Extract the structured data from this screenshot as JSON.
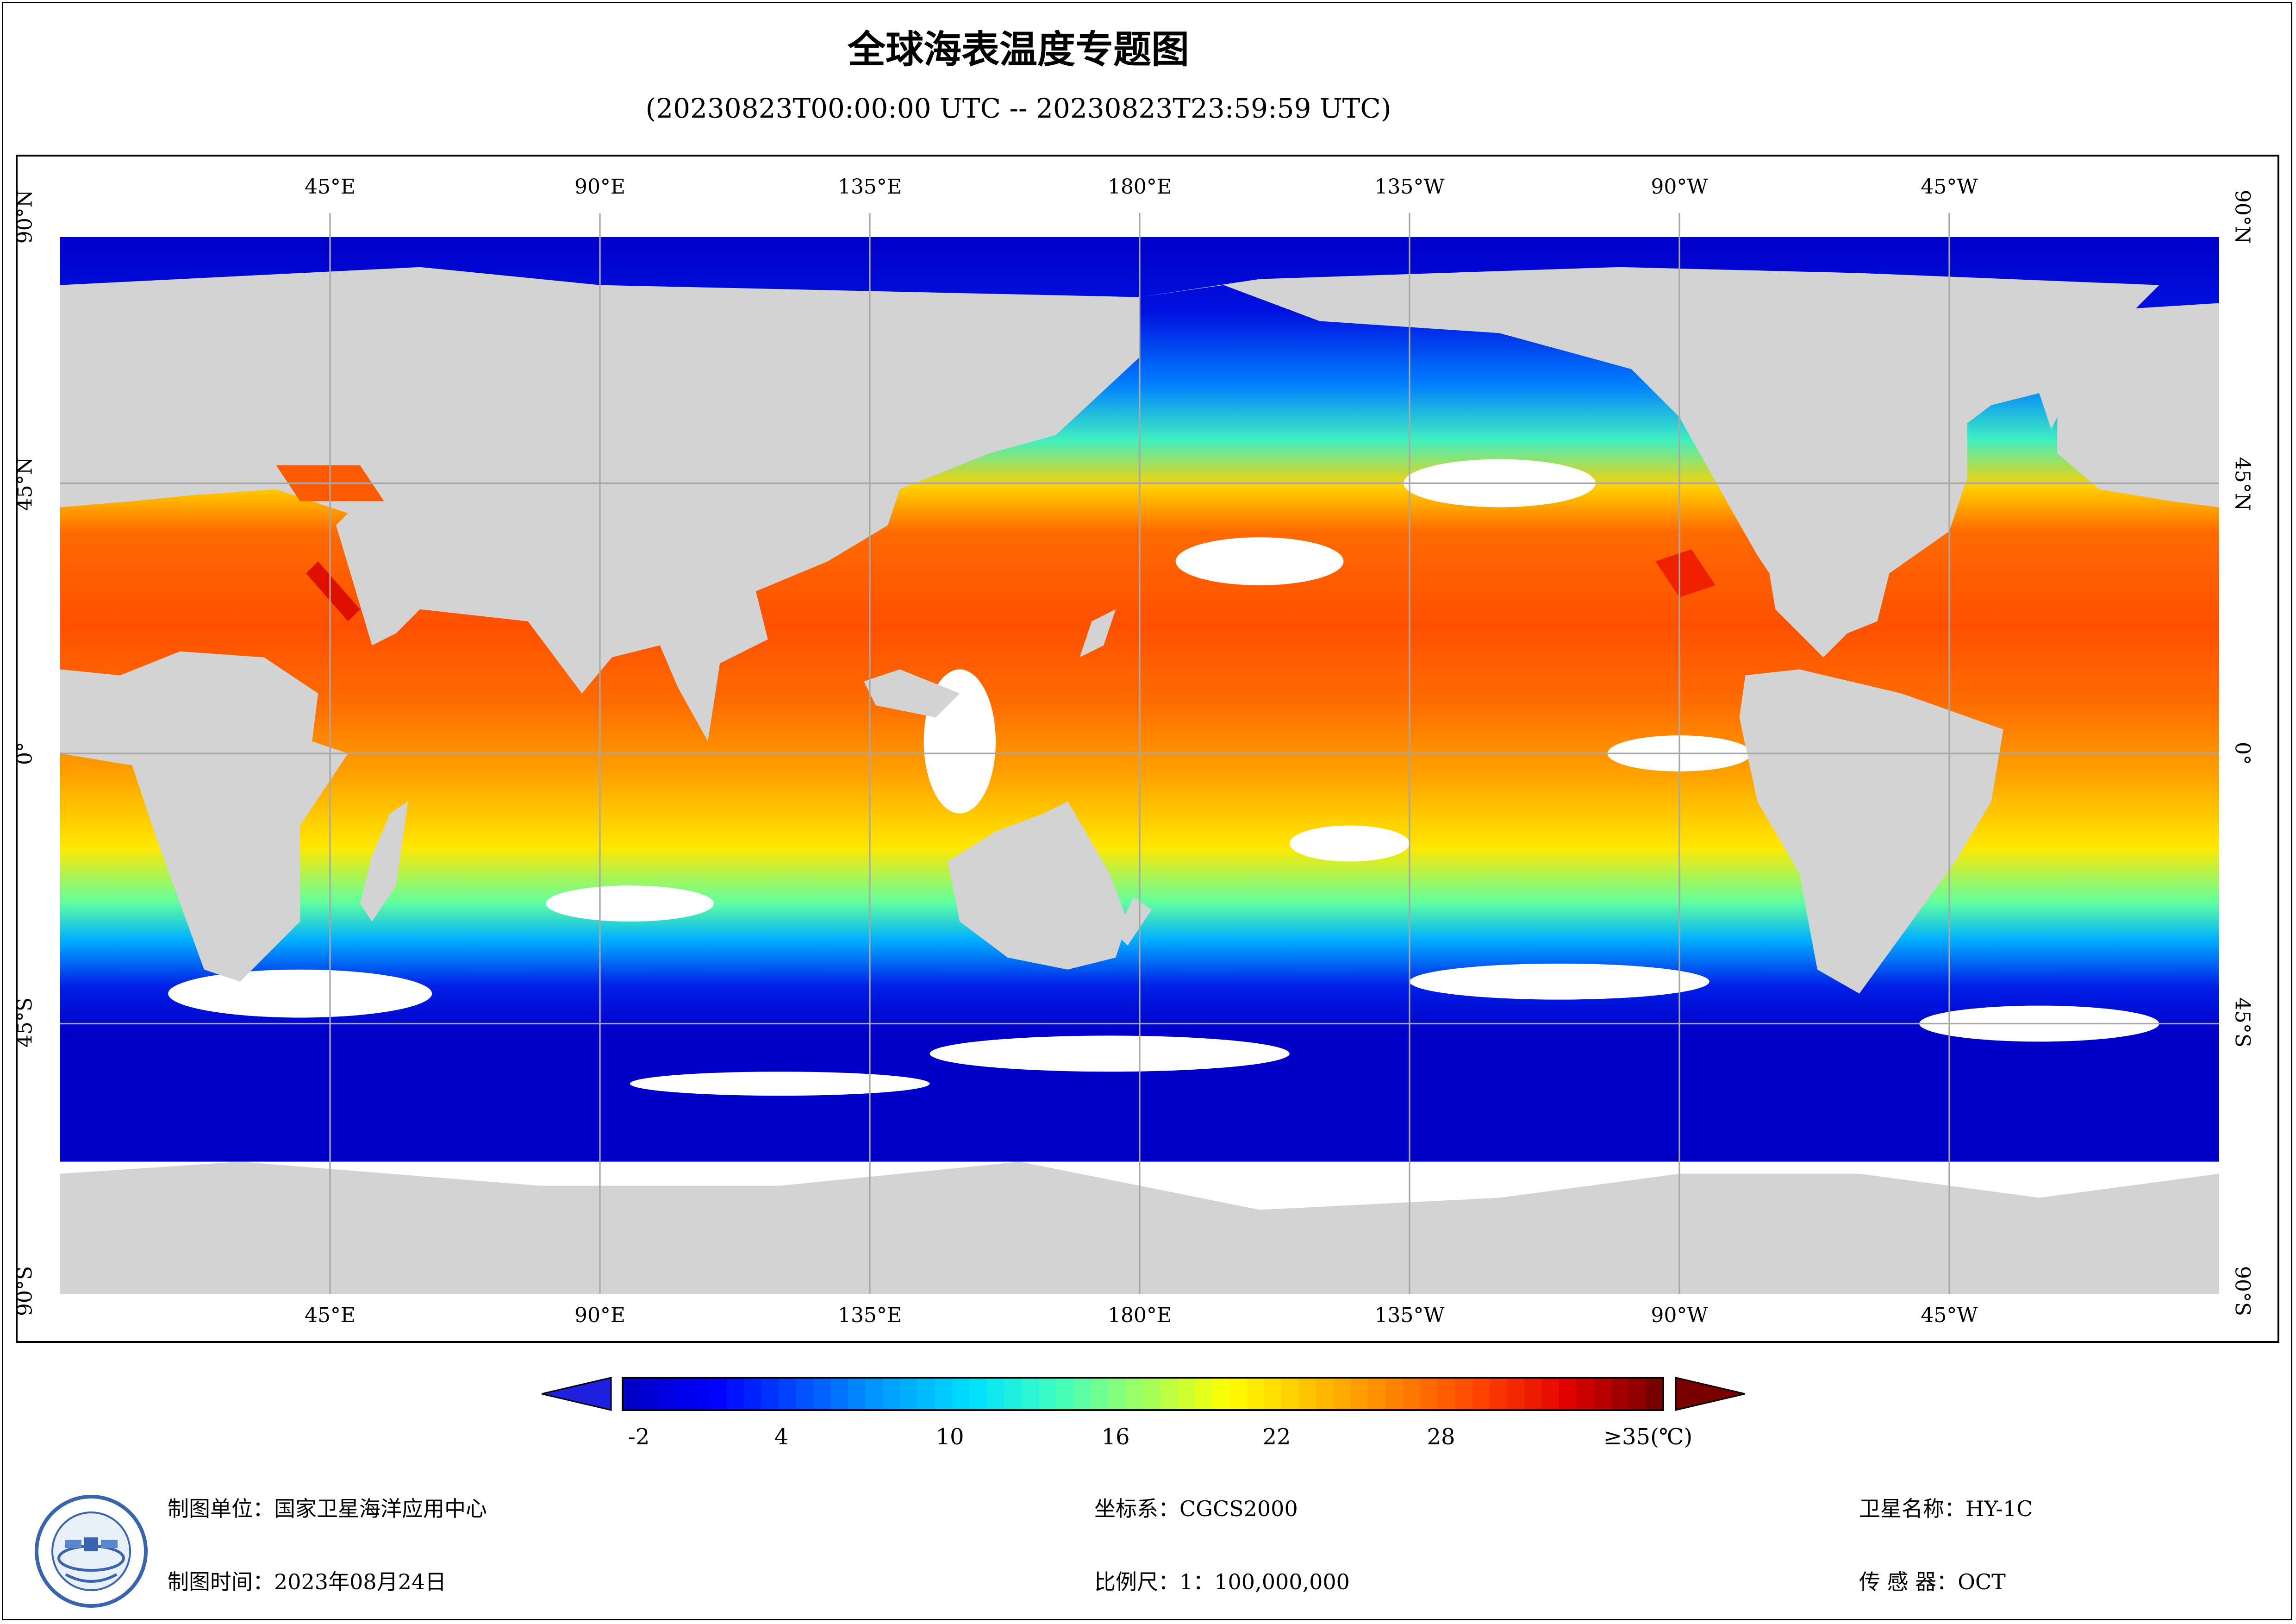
{
  "title": "全球海表温度专题图",
  "subtitle": "(20230823T00:00:00 UTC -- 20230823T23:59:59 UTC)",
  "map": {
    "projection": "equirectangular",
    "lon_labels_top": [
      "45°E",
      "90°E",
      "135°E",
      "180°E",
      "135°W",
      "90°W",
      "45°W"
    ],
    "lon_labels_bottom": [
      "45°E",
      "90°E",
      "135°E",
      "180°E",
      "135°W",
      "90°W",
      "45°W"
    ],
    "lat_labels_left": [
      "90°N",
      "45°N",
      "0°",
      "45°S",
      "90°S"
    ],
    "lat_labels_right": [
      "90°N",
      "45°N",
      "0°",
      "45°S",
      "90°S"
    ],
    "colors": {
      "land": "#d3d3d3",
      "no_data": "#ffffff",
      "grid": "#a8a8a8"
    }
  },
  "colorbar": {
    "ticks": [
      "-2",
      "4",
      "10",
      "16",
      "22",
      "28",
      "≥35(℃)"
    ],
    "tick_values": [
      -2,
      4,
      10,
      16,
      22,
      28,
      35
    ],
    "range": [
      -2,
      35
    ],
    "under_color": "#1f1fe0",
    "over_color": "#7a0000",
    "colors": [
      "#0000c8",
      "#0000ff",
      "#0050ff",
      "#00a0ff",
      "#00e0ff",
      "#40ffc0",
      "#a0ff60",
      "#ffff00",
      "#ffc000",
      "#ff8000",
      "#ff4000",
      "#e00000",
      "#7a0000"
    ]
  },
  "footer": {
    "org_label": "制图单位：",
    "org_value": "国家卫星海洋应用中心",
    "date_label": "制图时间：",
    "date_value": "2023年08月24日",
    "crs_label": "坐标系：",
    "crs_value": "CGCS2000",
    "scale_label": "比例尺：",
    "scale_value": "1：100,000,000",
    "sat_label": "卫星名称：",
    "sat_value": "HY-1C",
    "sensor_label": "传 感 器：",
    "sensor_value": "OCT"
  }
}
